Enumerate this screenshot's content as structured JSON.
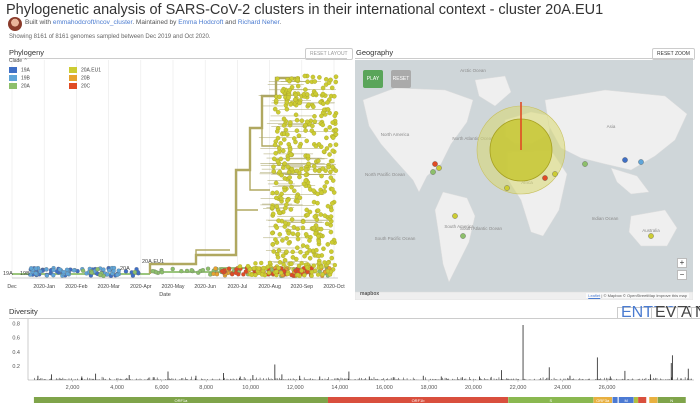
{
  "header": {
    "title": "Phylogenetic analysis of SARS-CoV-2 clusters in their international context - cluster 20A.EU1",
    "built_with": "Built with ",
    "repo_link": "emmahodcroft/ncov_cluster",
    "maintained_by": ". Maintained by ",
    "author1": "Emma Hodcroft",
    "and": " and ",
    "author2": "Richard Neher",
    "period": ".",
    "showing": "Showing 8161 of 8161 genomes sampled between Dec 2019 and Oct 2020."
  },
  "phylogeny": {
    "title": "Phylogeny",
    "reset_layout": "RESET LAYOUT",
    "legend_title": "Clade",
    "legend_collapse_icon": "chevron-up-icon",
    "legend": [
      {
        "label": "19A",
        "color": "#3f6fc5"
      },
      {
        "label": "19B",
        "color": "#5fa5d9"
      },
      {
        "label": "20A",
        "color": "#8dbf6b"
      },
      {
        "label": "20A.EU1",
        "color": "#cccc33"
      },
      {
        "label": "20B",
        "color": "#e7a32f"
      },
      {
        "label": "20C",
        "color": "#e04b24"
      }
    ],
    "branch_labels": [
      "19A",
      "19B",
      "20A",
      "20A.EU1"
    ],
    "x_ticks": [
      "Dec",
      "2020-Jan",
      "2020-Feb",
      "2020-Mar",
      "2020-Apr",
      "2020-May",
      "2020-Jun",
      "2020-Jul",
      "2020-Aug",
      "2020-Sep",
      "2020-Oct"
    ],
    "x_label": "Date"
  },
  "geography": {
    "title": "Geography",
    "reset_zoom": "RESET ZOOM",
    "play": "PLAY",
    "reset": "RESET",
    "zoom_in": "+",
    "zoom_out": "−",
    "labels": [
      "Arctic Ocean",
      "North Atlantic Ocean",
      "North Pacific Ocean",
      "South Atlantic Ocean",
      "Indian Ocean",
      "South Pacific Ocean",
      "North America",
      "South America",
      "Africa",
      "Asia",
      "Australia"
    ],
    "attribution_leaflet": "Leaflet",
    "attribution_rest": " | © Mapbox © OpenStreetMap Improve this map",
    "mapbox_logo": "mapbox",
    "colors": {
      "land": "#efefef",
      "water": "#cfd6d9",
      "bubble": "#c8c83a",
      "ring": "#d8d870",
      "line": "#e04b24",
      "play": "#5aa55a",
      "reset": "#aaaaaa"
    }
  },
  "diversity": {
    "title": "Diversity",
    "tabs": [
      {
        "label": "ENTROPY",
        "active": true
      },
      {
        "label": "EVENTS",
        "active": false
      },
      {
        "label": "AA",
        "active": false
      },
      {
        "label": "NT",
        "active": false
      }
    ],
    "y_ticks": [
      "0.8",
      "0.6",
      "0.4",
      "0.2"
    ],
    "x_ticks": [
      "2,000",
      "4,000",
      "6,000",
      "8,000",
      "10,000",
      "12,000",
      "14,000",
      "16,000",
      "18,000",
      "20,000",
      "22,000",
      "24,000",
      "26,000"
    ],
    "genes": [
      {
        "label": "ORF1a",
        "start": 266,
        "end": 13468,
        "color": "#7fa44a"
      },
      {
        "label": "ORF1b",
        "start": 13468,
        "end": 21555,
        "color": "#d94f3d"
      },
      {
        "label": "S",
        "start": 21563,
        "end": 25384,
        "color": "#8ab850"
      },
      {
        "label": "ORF3a",
        "start": 25393,
        "end": 26220,
        "color": "#e8b040"
      },
      {
        "label": "E",
        "start": 26245,
        "end": 26472,
        "color": "#4c7ad3"
      },
      {
        "label": "M",
        "start": 26523,
        "end": 27191,
        "color": "#4c7ad3"
      },
      {
        "label": "ORF6",
        "start": 27202,
        "end": 27387,
        "color": "#b0c040"
      },
      {
        "label": "ORF7a",
        "start": 27394,
        "end": 27759,
        "color": "#d94f3d"
      },
      {
        "label": "ORF8",
        "start": 27894,
        "end": 28259,
        "color": "#e8b040"
      },
      {
        "label": "N",
        "start": 28274,
        "end": 29533,
        "color": "#7fa44a"
      }
    ],
    "peaks": [
      {
        "pos": 445,
        "v": 0.06
      },
      {
        "pos": 1059,
        "v": 0.08
      },
      {
        "pos": 2416,
        "v": 0.05
      },
      {
        "pos": 3037,
        "v": 0.09
      },
      {
        "pos": 4543,
        "v": 0.07
      },
      {
        "pos": 5622,
        "v": 0.04
      },
      {
        "pos": 6286,
        "v": 0.12
      },
      {
        "pos": 7540,
        "v": 0.06
      },
      {
        "pos": 8782,
        "v": 0.1
      },
      {
        "pos": 9526,
        "v": 0.05
      },
      {
        "pos": 10097,
        "v": 0.07
      },
      {
        "pos": 11083,
        "v": 0.22
      },
      {
        "pos": 11400,
        "v": 0.08
      },
      {
        "pos": 12200,
        "v": 0.06
      },
      {
        "pos": 13100,
        "v": 0.05
      },
      {
        "pos": 14408,
        "v": 0.12
      },
      {
        "pos": 15324,
        "v": 0.05
      },
      {
        "pos": 16400,
        "v": 0.04
      },
      {
        "pos": 17747,
        "v": 0.06
      },
      {
        "pos": 18555,
        "v": 0.05
      },
      {
        "pos": 19500,
        "v": 0.04
      },
      {
        "pos": 20268,
        "v": 0.05
      },
      {
        "pos": 21255,
        "v": 0.14
      },
      {
        "pos": 22227,
        "v": 0.78
      },
      {
        "pos": 23403,
        "v": 0.18
      },
      {
        "pos": 24334,
        "v": 0.06
      },
      {
        "pos": 25563,
        "v": 0.32
      },
      {
        "pos": 26144,
        "v": 0.05
      },
      {
        "pos": 26801,
        "v": 0.13
      },
      {
        "pos": 27944,
        "v": 0.08
      },
      {
        "pos": 28881,
        "v": 0.24
      },
      {
        "pos": 28932,
        "v": 0.35
      },
      {
        "pos": 29645,
        "v": 0.16
      }
    ],
    "colors": {
      "bar": "#222222",
      "axis": "#999999"
    }
  }
}
